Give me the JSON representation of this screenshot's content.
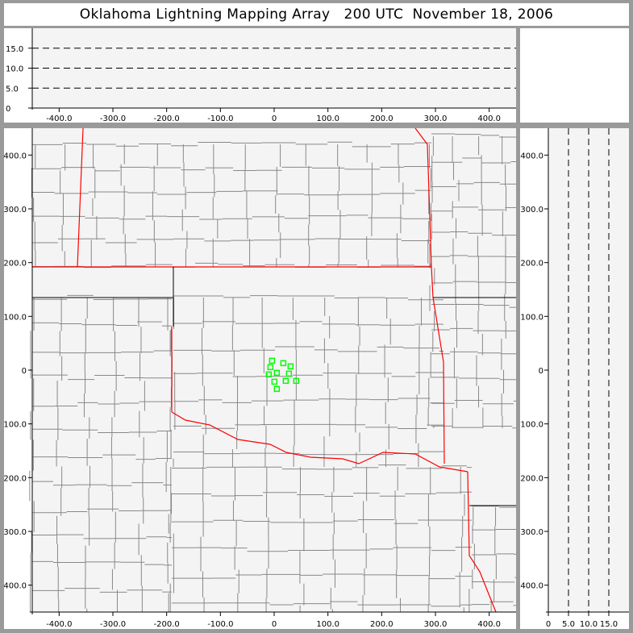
{
  "title": "Oklahoma Lightning Mapping Array   200 UTC  November 18, 2006",
  "colors": {
    "points": "#00ff00",
    "state_border": "#ff0000",
    "county": "#888888",
    "background": "#f4f4f4"
  },
  "chart_data": [
    {
      "type": "scatter",
      "panel": "altitude-vs-east-west",
      "xlim": [
        -450,
        450
      ],
      "ylim": [
        0,
        20
      ],
      "xticks": [
        "-400.0",
        "-300.0",
        "-200.0",
        "-100.0",
        "0",
        "100.0",
        "200.0",
        "300.0",
        "400.0"
      ],
      "yticks": [
        "0",
        "5.0",
        "10.0",
        "15.0"
      ],
      "grid": "dashed horizontal",
      "points": []
    },
    {
      "type": "scatter",
      "panel": "plan-view-map",
      "xlim": [
        -450,
        450
      ],
      "ylim": [
        -450,
        450
      ],
      "xticks": [
        "-400.0",
        "-300.0",
        "-200.0",
        "-100.0",
        "0",
        "100.0",
        "200.0",
        "300.0",
        "400.0"
      ],
      "yticks": [
        "-400.0",
        "-300.0",
        "-200.0",
        "-100.0",
        "0",
        "100.0",
        "200.0",
        "300.0",
        "400.0"
      ],
      "points": [
        {
          "x": -4,
          "y": 17.5
        },
        {
          "x": 17,
          "y": 13
        },
        {
          "x": 30.5,
          "y": 7
        },
        {
          "x": -7,
          "y": 5.5
        },
        {
          "x": 5,
          "y": -5
        },
        {
          "x": -10,
          "y": -8
        },
        {
          "x": 27.5,
          "y": -6.5
        },
        {
          "x": 0.5,
          "y": -21.5
        },
        {
          "x": 21.5,
          "y": -20
        },
        {
          "x": 41,
          "y": -20
        },
        {
          "x": 5,
          "y": -35
        }
      ]
    },
    {
      "type": "scatter",
      "panel": "north-south-vs-altitude",
      "xlim": [
        0,
        20
      ],
      "ylim": [
        -450,
        450
      ],
      "xticks": [
        "0",
        "5.0",
        "10.0",
        "15.0"
      ],
      "yticks": [
        "-400.0",
        "-300.0",
        "-200.0",
        "-100.0",
        "0",
        "100.0",
        "200.0",
        "300.0",
        "400.0"
      ],
      "grid": "dashed vertical",
      "points": []
    }
  ]
}
